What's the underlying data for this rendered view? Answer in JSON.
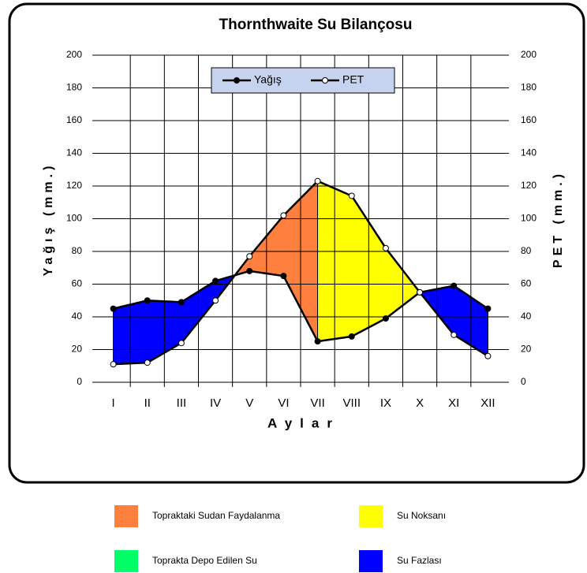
{
  "chart_data": {
    "type": "line",
    "title": "Thornthwaite Su Bilançosu",
    "y_label": "Yağış (mm.)",
    "y2_label": "PET (mm.)",
    "x_label": "Aylar",
    "categories": [
      "I",
      "II",
      "III",
      "IV",
      "V",
      "VI",
      "VII",
      "VIII",
      "IX",
      "X",
      "XI",
      "XII"
    ],
    "series": [
      {
        "name": "Yağış",
        "color": "#000000",
        "marker": "#000000",
        "values": [
          45,
          50,
          49,
          62,
          68,
          65,
          25,
          28,
          39,
          55,
          59,
          45
        ]
      },
      {
        "name": "PET",
        "color": "#000000",
        "marker": "#ffffff",
        "axis": "y2",
        "values": [
          11,
          12,
          24,
          50,
          77,
          102,
          123,
          114,
          82,
          55,
          29,
          16
        ]
      }
    ],
    "ylim": [
      0,
      200
    ],
    "yticks": [
      0,
      20,
      40,
      60,
      80,
      100,
      120,
      140,
      160,
      180,
      200
    ],
    "y2lim": [
      0,
      200
    ],
    "y2ticks": [
      0,
      20,
      40,
      60,
      80,
      100,
      120,
      140,
      160,
      180,
      200
    ],
    "grid": true,
    "areas": [
      {
        "name": "Topraktaki Sudan Faydalanma",
        "color": "#ff7f3f",
        "months": [
          "V",
          "VI",
          "VII"
        ]
      },
      {
        "name": "Su Noksanı",
        "color": "#ffff00",
        "months": [
          "VII",
          "VIII",
          "IX",
          "X"
        ]
      },
      {
        "name": "Toprakta Depo Edilen Su",
        "color": "#00ff66",
        "months": [
          "X",
          "XI"
        ]
      },
      {
        "name": "Su Fazlası",
        "color": "#0000ff",
        "months": [
          "I",
          "II",
          "III",
          "IV"
        ]
      },
      {
        "name": "Su Fazlası",
        "color": "#0000ff",
        "months": [
          "XI",
          "XII"
        ]
      }
    ]
  }
}
